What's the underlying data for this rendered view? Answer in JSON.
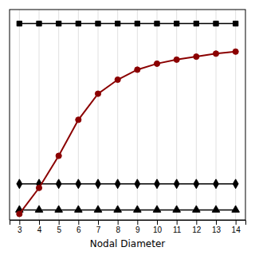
{
  "chart_data": {
    "type": "line",
    "xlabel": "Nodal Diameter",
    "x": [
      3,
      4,
      5,
      6,
      7,
      8,
      9,
      10,
      11,
      12,
      13,
      14
    ],
    "series": [
      {
        "color": "#000000",
        "marker": "square",
        "line_style": "solid",
        "values": [
          9.8,
          9.8,
          9.8,
          9.8,
          9.8,
          9.8,
          9.8,
          9.8,
          9.8,
          9.8,
          9.8,
          9.8
        ]
      },
      {
        "color": "#000000",
        "marker": "diamond",
        "line_style": "solid",
        "values": [
          1.8,
          1.8,
          1.8,
          1.8,
          1.8,
          1.8,
          1.8,
          1.8,
          1.8,
          1.8,
          1.8,
          1.8
        ]
      },
      {
        "color": "#000000",
        "marker": "triangle-up",
        "line_style": "solid",
        "values": [
          0.5,
          0.5,
          0.5,
          0.5,
          0.5,
          0.5,
          0.5,
          0.5,
          0.5,
          0.5,
          0.5,
          0.5
        ]
      },
      {
        "color": "#8B0000",
        "marker": "circle",
        "line_style": "solid",
        "values": [
          0.3,
          1.6,
          3.2,
          5.0,
          6.3,
          7.0,
          7.5,
          7.8,
          8.0,
          8.15,
          8.3,
          8.4
        ]
      }
    ],
    "xlim": [
      2.5,
      14.5
    ],
    "ylim": [
      0.0,
      10.5
    ],
    "xticks": [
      3,
      4,
      5,
      6,
      7,
      8,
      9,
      10,
      11,
      12,
      13,
      14
    ],
    "grid": true,
    "tick_labels": "x"
  }
}
